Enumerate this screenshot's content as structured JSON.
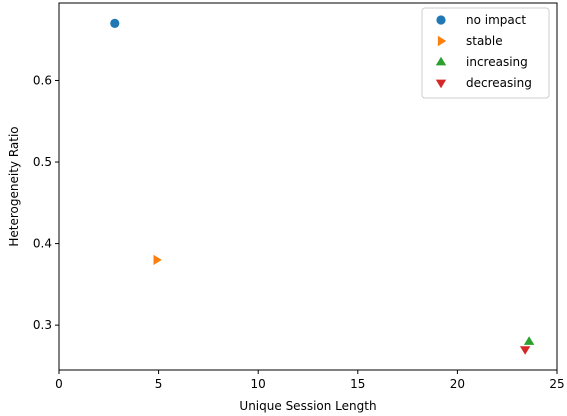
{
  "chart_data": {
    "type": "scatter",
    "title": "",
    "xlabel": "Unique Session Length",
    "ylabel": "Heterogeneity Ratio",
    "xlim": [
      0,
      25
    ],
    "ylim": [
      0.245,
      0.695
    ],
    "xticks": [
      0,
      5,
      10,
      15,
      20,
      25
    ],
    "yticks": [
      0.3,
      0.4,
      0.5,
      0.6
    ],
    "grid": false,
    "legend_position": "top-right",
    "series": [
      {
        "name": "no impact",
        "marker": "circle",
        "color": "#1f77b4",
        "points": [
          {
            "x": 2.8,
            "y": 0.67
          }
        ]
      },
      {
        "name": "stable",
        "marker": "triangle-right",
        "color": "#ff7f0e",
        "points": [
          {
            "x": 4.9,
            "y": 0.38
          }
        ]
      },
      {
        "name": "increasing",
        "marker": "triangle-up",
        "color": "#2ca02c",
        "points": [
          {
            "x": 23.6,
            "y": 0.28
          }
        ]
      },
      {
        "name": "decreasing",
        "marker": "triangle-down",
        "color": "#d62728",
        "points": [
          {
            "x": 23.4,
            "y": 0.27
          }
        ]
      }
    ]
  }
}
